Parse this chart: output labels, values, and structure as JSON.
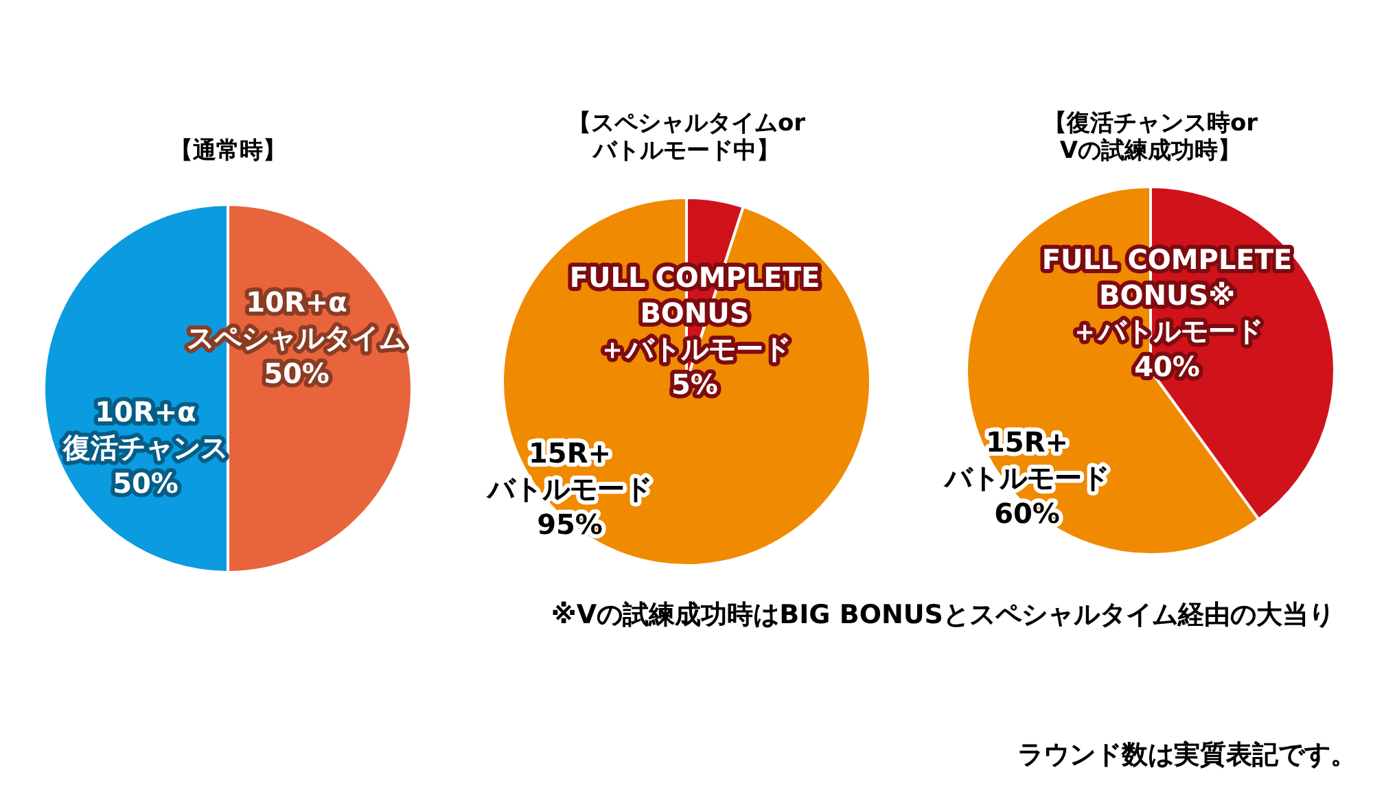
{
  "chart_data": [
    {
      "type": "pie",
      "title": "【通常時】",
      "categories": [
        "10R+α\nスペシャルタイム",
        "10R+α\n復活チャンス"
      ],
      "values": [
        50,
        50
      ],
      "colors": [
        "#e8643c",
        "#0a9be0"
      ],
      "value_labels": [
        "50%",
        "50%"
      ]
    },
    {
      "type": "pie",
      "title": "【スペシャルタイムor\nバトルモード中】",
      "categories": [
        "FULL COMPLETE\nBONUS\n＋バトルモード",
        "15R+\nバトルモード"
      ],
      "values": [
        5,
        95
      ],
      "colors": [
        "#d0121b",
        "#f08a00"
      ],
      "value_labels": [
        "5%",
        "95%"
      ]
    },
    {
      "type": "pie",
      "title": "【復活チャンス時or\nVの試練成功時】",
      "categories": [
        "FULL COMPLETE\nBONUS※\n＋バトルモード",
        "15R+\nバトルモード"
      ],
      "values": [
        40,
        60
      ],
      "colors": [
        "#d0121b",
        "#f08a00"
      ],
      "value_labels": [
        "40%",
        "60%"
      ],
      "annotations": [
        "※Vの試練成功時はBIG BONUSとスペシャルタイム経由の大当り",
        "ラウンド数は実質表記です。"
      ]
    }
  ]
}
